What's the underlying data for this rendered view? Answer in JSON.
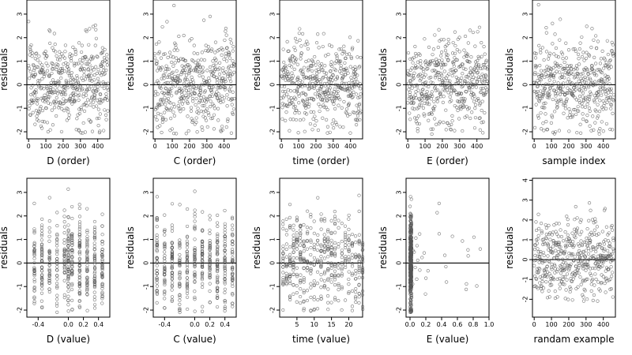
{
  "chart_data": [
    {
      "type": "scatter",
      "panel": "D-order",
      "xlabel": "D (order)",
      "ylabel": "residuals",
      "xlim": [
        -10,
        470
      ],
      "ylim": [
        -2.3,
        3.6
      ],
      "xticks": [
        0,
        100,
        200,
        300,
        400
      ],
      "yticks": [
        -2,
        -1,
        0,
        1,
        2,
        3
      ],
      "ref_y": 0,
      "shape": "uniform",
      "n": 470,
      "grid": false
    },
    {
      "type": "scatter",
      "panel": "C-order",
      "xlabel": "C (order)",
      "ylabel": "residuals",
      "xlim": [
        -10,
        470
      ],
      "ylim": [
        -2.3,
        3.6
      ],
      "xticks": [
        0,
        100,
        200,
        300,
        400
      ],
      "yticks": [
        -2,
        -1,
        0,
        1,
        2,
        3
      ],
      "ref_y": 0,
      "shape": "uniform",
      "n": 470,
      "grid": false
    },
    {
      "type": "scatter",
      "panel": "time-order",
      "xlabel": "time (order)",
      "ylabel": "residuals",
      "xlim": [
        -10,
        470
      ],
      "ylim": [
        -2.3,
        3.6
      ],
      "xticks": [
        0,
        100,
        200,
        300,
        400
      ],
      "yticks": [
        -2,
        -1,
        0,
        1,
        2,
        3
      ],
      "ref_y": 0,
      "shape": "uniform",
      "n": 470,
      "grid": false
    },
    {
      "type": "scatter",
      "panel": "E-order",
      "xlabel": "E (order)",
      "ylabel": "residuals",
      "xlim": [
        -10,
        470
      ],
      "ylim": [
        -2.3,
        3.6
      ],
      "xticks": [
        0,
        100,
        200,
        300,
        400
      ],
      "yticks": [
        -2,
        -1,
        0,
        1,
        2,
        3
      ],
      "ref_y": 0,
      "shape": "uniform",
      "n": 470,
      "grid": false
    },
    {
      "type": "scatter",
      "panel": "sample-index",
      "xlabel": "sample index",
      "ylabel": "residuals",
      "xlim": [
        -10,
        470
      ],
      "ylim": [
        -2.3,
        3.6
      ],
      "xticks": [
        0,
        100,
        200,
        300,
        400
      ],
      "yticks": [
        -2,
        -1,
        0,
        1,
        2,
        3
      ],
      "ref_y": 0,
      "shape": "uniform",
      "n": 470,
      "grid": false
    },
    {
      "type": "scatter",
      "panel": "D-value",
      "xlabel": "D (value)",
      "ylabel": "residuals",
      "xlim": [
        -0.55,
        0.55
      ],
      "ylim": [
        -2.3,
        3.6
      ],
      "xticks": [
        -0.4,
        0,
        0.2,
        0.4
      ],
      "xticklabels": [
        "-0.4",
        "0.0",
        "0.2",
        "0.4"
      ],
      "yticks": [
        -2,
        -1,
        0,
        1,
        2,
        3
      ],
      "ref_y": 0,
      "shape": "discrete",
      "x_levels": [
        -0.45,
        -0.35,
        -0.25,
        -0.15,
        -0.05,
        0,
        0.05,
        0.15,
        0.25,
        0.35,
        0.45
      ],
      "n": 470,
      "grid": false
    },
    {
      "type": "scatter",
      "panel": "C-value",
      "xlabel": "C (value)",
      "ylabel": "residuals",
      "xlim": [
        -0.55,
        0.55
      ],
      "ylim": [
        -2.3,
        3.6
      ],
      "xticks": [
        -0.4,
        0,
        0.2,
        0.4
      ],
      "xticklabels": [
        "-0.4",
        "0.0",
        "0.2",
        "0.4"
      ],
      "yticks": [
        -2,
        -1,
        0,
        1,
        2,
        3
      ],
      "ref_y": 0,
      "shape": "discrete",
      "x_levels": [
        -0.5,
        -0.4,
        -0.3,
        -0.2,
        -0.1,
        0,
        0.1,
        0.2,
        0.3,
        0.4,
        0.5
      ],
      "n": 470,
      "grid": false
    },
    {
      "type": "scatter",
      "panel": "time-value",
      "xlabel": "time (value)",
      "ylabel": "residuals",
      "xlim": [
        0,
        24
      ],
      "ylim": [
        -2.3,
        3.6
      ],
      "xticks": [
        5,
        10,
        15,
        20
      ],
      "yticks": [
        -2,
        -1,
        0,
        1,
        2,
        3
      ],
      "ref_y": 0,
      "shape": "discrete",
      "x_levels": [
        1,
        2,
        3,
        4,
        5,
        6,
        7,
        8,
        9,
        10,
        11,
        12,
        13,
        14,
        15,
        16,
        17,
        18,
        19,
        20,
        21,
        22,
        23,
        24
      ],
      "n": 470,
      "grid": false
    },
    {
      "type": "scatter",
      "panel": "E-value",
      "xlabel": "E (value)",
      "ylabel": "residuals",
      "xlim": [
        -0.05,
        1.0
      ],
      "ylim": [
        -2.3,
        3.6
      ],
      "xticks": [
        0,
        0.2,
        0.4,
        0.6,
        0.8,
        1.0
      ],
      "xticklabels": [
        "0.0",
        "0.2",
        "0.4",
        "0.6",
        "0.8",
        "1.0"
      ],
      "yticks": [
        -2,
        -1,
        0,
        1,
        2,
        3
      ],
      "ref_y": 0,
      "shape": "skewed",
      "n": 470,
      "grid": false
    },
    {
      "type": "scatter",
      "panel": "random-example",
      "xlabel": "randam example",
      "ylabel": "residuals",
      "xlim": [
        -10,
        470
      ],
      "ylim": [
        -2.9,
        4.1
      ],
      "xticks": [
        0,
        100,
        200,
        300,
        400
      ],
      "yticks": [
        -2,
        -1,
        0,
        1,
        2,
        3,
        4
      ],
      "ref_y": 0,
      "shape": "uniform",
      "n": 470,
      "grid": false
    }
  ]
}
